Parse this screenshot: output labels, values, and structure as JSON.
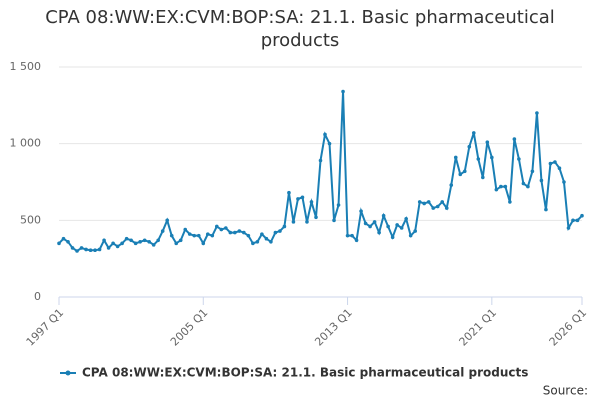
{
  "chart_data": {
    "type": "line",
    "title": "CPA 08:WW:EX:CVM:BOP:SA: 21.1. Basic pharmaceutical products",
    "source": "Source:",
    "categories": [
      "1997 Q1",
      null,
      null,
      null,
      null,
      null,
      null,
      null,
      null,
      null,
      null,
      null,
      null,
      null,
      null,
      null,
      null,
      null,
      null,
      null,
      null,
      null,
      null,
      null,
      null,
      null,
      null,
      null,
      null,
      null,
      null,
      null,
      "2005 Q1",
      null,
      null,
      null,
      null,
      null,
      null,
      null,
      null,
      null,
      null,
      null,
      null,
      null,
      null,
      null,
      null,
      null,
      null,
      null,
      null,
      null,
      null,
      null,
      null,
      null,
      null,
      null,
      null,
      null,
      null,
      null,
      "2013 Q1",
      null,
      null,
      null,
      null,
      null,
      null,
      null,
      null,
      null,
      null,
      null,
      null,
      null,
      null,
      null,
      null,
      null,
      null,
      null,
      null,
      null,
      null,
      null,
      null,
      null,
      null,
      null,
      null,
      null,
      null,
      null,
      "2021 Q1",
      null,
      null,
      null,
      null,
      null,
      null,
      null,
      null,
      null,
      null,
      null,
      null,
      null,
      null,
      null,
      null,
      null,
      null,
      null,
      "2026 Q1"
    ],
    "series": [
      {
        "name": "CPA 08:WW:EX:CVM:BOP:SA: 21.1. Basic pharmaceutical products",
        "color": "#1a7fb5",
        "values": [
          350,
          380,
          360,
          320,
          300,
          320,
          310,
          305,
          305,
          310,
          370,
          320,
          350,
          330,
          350,
          380,
          370,
          350,
          360,
          370,
          360,
          340,
          370,
          430,
          500,
          400,
          350,
          370,
          440,
          410,
          400,
          400,
          350,
          410,
          400,
          460,
          440,
          450,
          420,
          420,
          430,
          420,
          400,
          350,
          360,
          410,
          380,
          360,
          420,
          430,
          460,
          680,
          490,
          640,
          650,
          490,
          620,
          520,
          890,
          1060,
          1000,
          500,
          600,
          1340,
          400,
          400,
          370,
          560,
          480,
          460,
          490,
          420,
          530,
          460,
          390,
          470,
          450,
          510,
          400,
          430,
          620,
          610,
          620,
          580,
          590,
          620,
          580,
          730,
          910,
          800,
          820,
          980,
          1070,
          900,
          780,
          1010,
          910,
          700,
          720,
          720,
          620,
          1030,
          900,
          740,
          720,
          820,
          1200,
          760,
          570,
          870,
          880,
          840,
          750,
          450,
          500,
          500,
          530
        ]
      }
    ],
    "ylim": [
      0,
      1500
    ],
    "yticks": [
      0,
      500,
      {
        "value": 1000,
        "label": "1 000"
      },
      {
        "value": 1500,
        "label": "1 500"
      }
    ],
    "grid": true,
    "legend": "bottom"
  }
}
